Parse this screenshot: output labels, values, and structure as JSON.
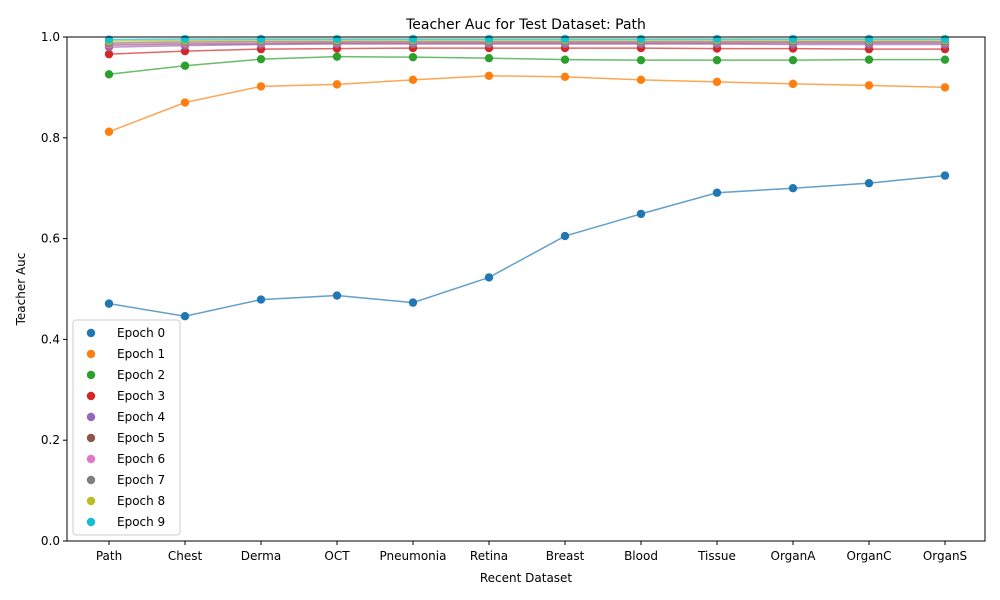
{
  "chart_data": {
    "type": "line",
    "title": "Teacher Auc for Test Dataset: Path",
    "xlabel": "Recent Dataset",
    "ylabel": "Teacher Auc",
    "ylim": [
      0.0,
      1.0
    ],
    "yticks": [
      "0.0",
      "0.2",
      "0.4",
      "0.6",
      "0.8",
      "1.0"
    ],
    "categories": [
      "Path",
      "Chest",
      "Derma",
      "OCT",
      "Pneumonia",
      "Retina",
      "Breast",
      "Blood",
      "Tissue",
      "OrganA",
      "OrganC",
      "OrganS"
    ],
    "legend_position": "lower-left",
    "grid": false,
    "series": [
      {
        "name": "Epoch 0",
        "color": "#1f77b4",
        "values": [
          0.471,
          0.446,
          0.479,
          0.487,
          0.473,
          0.523,
          0.605,
          0.649,
          0.691,
          0.7,
          0.71,
          0.725
        ]
      },
      {
        "name": "Epoch 1",
        "color": "#ff7f0e",
        "values": [
          0.812,
          0.87,
          0.902,
          0.906,
          0.915,
          0.923,
          0.921,
          0.915,
          0.911,
          0.907,
          0.904,
          0.9
        ]
      },
      {
        "name": "Epoch 2",
        "color": "#2ca02c",
        "values": [
          0.926,
          0.943,
          0.956,
          0.961,
          0.96,
          0.958,
          0.955,
          0.954,
          0.954,
          0.954,
          0.955,
          0.955
        ]
      },
      {
        "name": "Epoch 3",
        "color": "#d62728",
        "values": [
          0.966,
          0.972,
          0.976,
          0.977,
          0.978,
          0.978,
          0.978,
          0.978,
          0.977,
          0.977,
          0.976,
          0.976
        ]
      },
      {
        "name": "Epoch 4",
        "color": "#9467bd",
        "values": [
          0.98,
          0.983,
          0.985,
          0.986,
          0.986,
          0.986,
          0.986,
          0.986,
          0.986,
          0.985,
          0.985,
          0.985
        ]
      },
      {
        "name": "Epoch 5",
        "color": "#8c564b",
        "values": [
          0.984,
          0.986,
          0.987,
          0.988,
          0.988,
          0.988,
          0.988,
          0.988,
          0.988,
          0.988,
          0.988,
          0.988
        ]
      },
      {
        "name": "Epoch 6",
        "color": "#e377c2",
        "values": [
          0.985,
          0.987,
          0.988,
          0.989,
          0.989,
          0.989,
          0.989,
          0.989,
          0.989,
          0.989,
          0.989,
          0.989
        ]
      },
      {
        "name": "Epoch 7",
        "color": "#7f7f7f",
        "values": [
          0.988,
          0.99,
          0.991,
          0.991,
          0.991,
          0.991,
          0.991,
          0.991,
          0.991,
          0.991,
          0.991,
          0.991
        ]
      },
      {
        "name": "Epoch 8",
        "color": "#bcbd22",
        "values": [
          0.992,
          0.993,
          0.994,
          0.994,
          0.994,
          0.994,
          0.994,
          0.994,
          0.994,
          0.994,
          0.994,
          0.994
        ]
      },
      {
        "name": "Epoch 9",
        "color": "#17becf",
        "values": [
          0.995,
          0.996,
          0.996,
          0.996,
          0.996,
          0.996,
          0.996,
          0.996,
          0.996,
          0.996,
          0.996,
          0.996
        ]
      }
    ]
  }
}
